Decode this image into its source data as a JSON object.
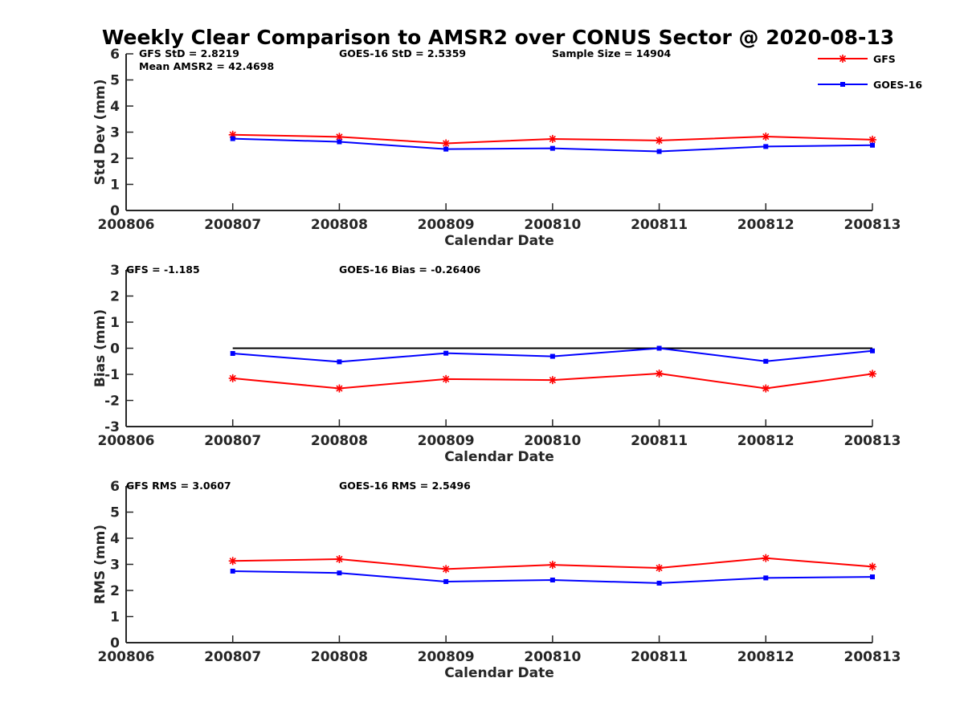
{
  "title": "Weekly Clear Comparison to AMSR2 over CONUS Sector @ 2020-08-13",
  "legend": [
    {
      "name": "GFS",
      "color": "#ff0000",
      "marker": "asterisk"
    },
    {
      "name": "GOES-16",
      "color": "#0000ff",
      "marker": "square"
    }
  ],
  "colors": {
    "gfs": "#ff0000",
    "goes16": "#0000ff",
    "zero_line": "#000000",
    "axis": "#262626"
  },
  "panels": [
    {
      "annotations": {
        "gfs": "GFS StD = 2.8219",
        "goes": "GOES-16 StD = 2.5359",
        "sample": "Sample Size = 14904",
        "mean": "Mean AMSR2 = 42.4698"
      }
    },
    {
      "annotations": {
        "gfs": "GFS = -1.185",
        "goes": "GOES-16 Bias  = -0.26406"
      }
    },
    {
      "annotations": {
        "gfs": "GFS RMS = 3.0607",
        "goes": "GOES-16 RMS = 2.5496"
      }
    }
  ],
  "chart_data": [
    {
      "type": "line",
      "title": "Weekly Clear Comparison to AMSR2 over CONUS Sector @ 2020-08-13",
      "xlabel": "Calendar Date",
      "ylabel": "Std Dev (mm)",
      "xticks": [
        "200806",
        "200807",
        "200808",
        "200809",
        "200810",
        "200811",
        "200812",
        "200813"
      ],
      "yticks": [
        "0",
        "1",
        "2",
        "3",
        "4",
        "5",
        "6"
      ],
      "x": [
        "200807",
        "200808",
        "200809",
        "200810",
        "200811",
        "200812",
        "200813"
      ],
      "ylim": [
        0,
        6
      ],
      "grid": false,
      "legend": "top-right",
      "series": [
        {
          "name": "GFS",
          "values": [
            2.9,
            2.82,
            2.57,
            2.74,
            2.68,
            2.83,
            2.71
          ]
        },
        {
          "name": "GOES-16",
          "values": [
            2.75,
            2.63,
            2.35,
            2.38,
            2.26,
            2.45,
            2.5
          ]
        }
      ]
    },
    {
      "type": "line",
      "xlabel": "Calendar Date",
      "ylabel": "Bias (mm)",
      "xticks": [
        "200806",
        "200807",
        "200808",
        "200809",
        "200810",
        "200811",
        "200812",
        "200813"
      ],
      "yticks": [
        "-3",
        "-2",
        "-1",
        "0",
        "1",
        "2",
        "3"
      ],
      "x": [
        "200807",
        "200808",
        "200809",
        "200810",
        "200811",
        "200812",
        "200813"
      ],
      "ylim": [
        -3,
        3
      ],
      "grid": false,
      "zero_line": {
        "y": 0,
        "from": "200807",
        "to": "200813"
      },
      "series": [
        {
          "name": "GFS",
          "values": [
            -1.15,
            -1.54,
            -1.18,
            -1.22,
            -0.97,
            -1.54,
            -0.98
          ]
        },
        {
          "name": "GOES-16",
          "values": [
            -0.2,
            -0.52,
            -0.19,
            -0.31,
            0.0,
            -0.5,
            -0.1
          ]
        }
      ]
    },
    {
      "type": "line",
      "xlabel": "Calendar Date",
      "ylabel": "RMS (mm)",
      "xticks": [
        "200806",
        "200807",
        "200808",
        "200809",
        "200810",
        "200811",
        "200812",
        "200813"
      ],
      "yticks": [
        "0",
        "1",
        "2",
        "3",
        "4",
        "5",
        "6"
      ],
      "x": [
        "200807",
        "200808",
        "200809",
        "200810",
        "200811",
        "200812",
        "200813"
      ],
      "ylim": [
        0,
        6
      ],
      "grid": false,
      "series": [
        {
          "name": "GFS",
          "values": [
            3.13,
            3.2,
            2.82,
            2.98,
            2.86,
            3.24,
            2.91
          ]
        },
        {
          "name": "GOES-16",
          "values": [
            2.74,
            2.67,
            2.34,
            2.4,
            2.28,
            2.48,
            2.52
          ]
        }
      ]
    }
  ]
}
